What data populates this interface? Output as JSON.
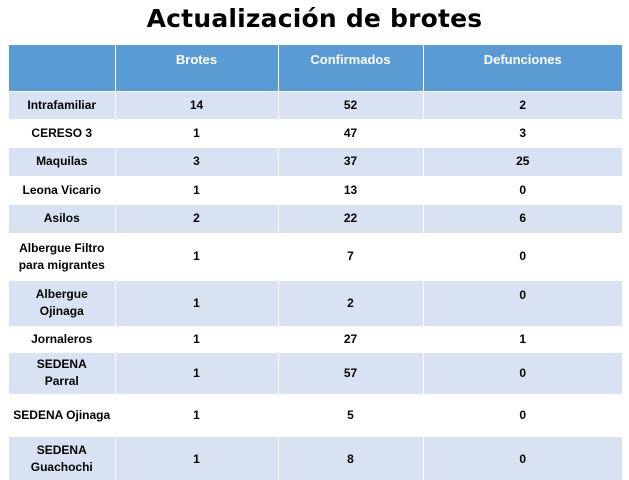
{
  "title": "Actualización de brotes",
  "table": {
    "columns": [
      "",
      "Brotes",
      "Confirmados",
      "Defunciones"
    ],
    "rows": [
      {
        "name": "Intrafamiliar",
        "brotes": "14",
        "confirmados": "52",
        "defunciones": "2"
      },
      {
        "name": "CERESO 3",
        "brotes": "1",
        "confirmados": "47",
        "defunciones": "3"
      },
      {
        "name": "Maquilas",
        "brotes": "3",
        "confirmados": "37",
        "defunciones": "25"
      },
      {
        "name": "Leona Vicario",
        "brotes": "1",
        "confirmados": "13",
        "defunciones": "0"
      },
      {
        "name": "Asilos",
        "brotes": "2",
        "confirmados": "22",
        "defunciones": "6"
      },
      {
        "name": "Albergue Filtro para migrantes",
        "brotes": "1",
        "confirmados": "7",
        "defunciones": "0"
      },
      {
        "name": "Albergue Ojinaga",
        "brotes": "1",
        "confirmados": "2",
        "defunciones": "0"
      },
      {
        "name": "Jornaleros",
        "brotes": "1",
        "confirmados": "27",
        "defunciones": "1"
      },
      {
        "name": "SEDENA Parral",
        "brotes": "1",
        "confirmados": "57",
        "defunciones": "0"
      },
      {
        "name": "SEDENA Ojinaga",
        "brotes": "1",
        "confirmados": "5",
        "defunciones": "0"
      },
      {
        "name": "SEDENA Guachochi",
        "brotes": "1",
        "confirmados": "8",
        "defunciones": "0"
      }
    ]
  },
  "colors": {
    "header_bg": "#5b9bd5",
    "band_bg": "#d9e2f3"
  }
}
